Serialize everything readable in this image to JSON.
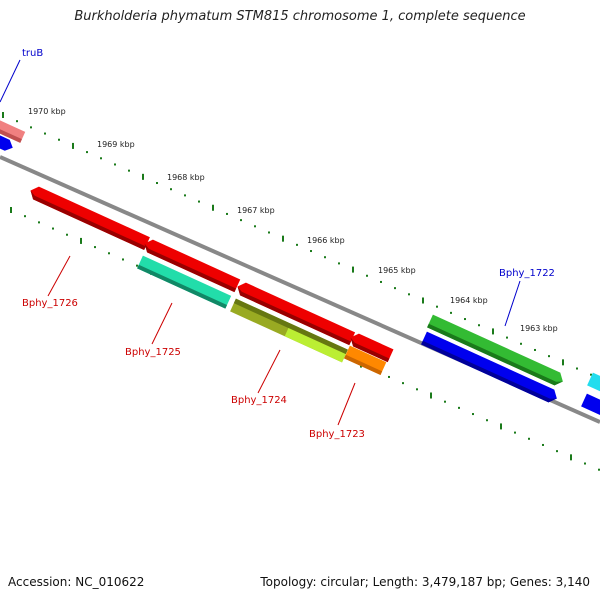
{
  "header": {
    "title": "Burkholderia phymatum STM815 chromosome 1, complete sequence"
  },
  "footer": {
    "accession": "Accession: NC_010622",
    "summary": "Topology: circular; Length: 3,479,187 bp; Genes: 3,140"
  },
  "ticks": [
    "1970 kbp",
    "1969 kbp",
    "1968 kbp",
    "1967 kbp",
    "1966 kbp",
    "1965 kbp",
    "1964 kbp",
    "1963 kbp"
  ],
  "labels": {
    "truB": "truB",
    "bphy1722": "Bphy_1722",
    "bphy1723": "Bphy_1723",
    "bphy1724": "Bphy_1724",
    "bphy1725": "Bphy_1725",
    "bphy1726": "Bphy_1726"
  },
  "colors": {
    "forward_label": "#0000cc",
    "reverse_label": "#cc0000",
    "backbone": "#888888",
    "tick": "#1a7a1a",
    "red": "#ee0000",
    "teal": "#22ddaa",
    "olive": "#99aa22",
    "orange": "#ff8800",
    "green": "#33bb33",
    "blue": "#0000ee",
    "pink": "#f08080",
    "cyan": "#22ddee"
  }
}
